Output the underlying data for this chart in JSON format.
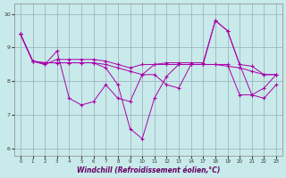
{
  "xlabel": "Windchill (Refroidissement éolien,°C)",
  "bg_color": "#c8eaea",
  "line_color": "#aa00aa",
  "grid_color": "#99aabb",
  "ylim": [
    5.8,
    10.3
  ],
  "yticks": [
    6,
    7,
    8,
    9,
    10
  ],
  "x_labels": [
    "0",
    "1",
    "2",
    "3",
    "4",
    "5",
    "6",
    "7",
    "8",
    "9",
    "10",
    "11",
    "12",
    "13",
    "14",
    "17",
    "18",
    "19",
    "20",
    "21",
    "22",
    "23"
  ],
  "series": [
    [
      9.4,
      8.6,
      8.5,
      8.9,
      7.5,
      7.3,
      7.4,
      7.9,
      7.5,
      7.4,
      8.2,
      8.2,
      7.9,
      7.8,
      8.5,
      8.5,
      8.5,
      8.5,
      7.6,
      7.6,
      7.8,
      8.2
    ],
    [
      9.4,
      8.6,
      8.5,
      8.65,
      8.65,
      8.65,
      8.65,
      8.6,
      8.5,
      8.4,
      8.5,
      8.5,
      8.5,
      8.5,
      8.5,
      8.5,
      8.5,
      8.45,
      8.4,
      8.3,
      8.2,
      8.2
    ],
    [
      9.4,
      8.6,
      8.55,
      8.55,
      8.55,
      8.55,
      8.55,
      8.5,
      8.4,
      8.3,
      8.2,
      8.5,
      8.55,
      8.55,
      8.55,
      8.55,
      9.8,
      9.5,
      8.5,
      8.45,
      8.2,
      8.2
    ],
    [
      9.4,
      8.6,
      8.55,
      8.55,
      8.55,
      8.55,
      8.55,
      8.4,
      7.9,
      6.6,
      6.3,
      7.5,
      8.15,
      8.5,
      8.5,
      8.5,
      9.8,
      9.5,
      8.5,
      7.6,
      7.5,
      7.9
    ]
  ]
}
